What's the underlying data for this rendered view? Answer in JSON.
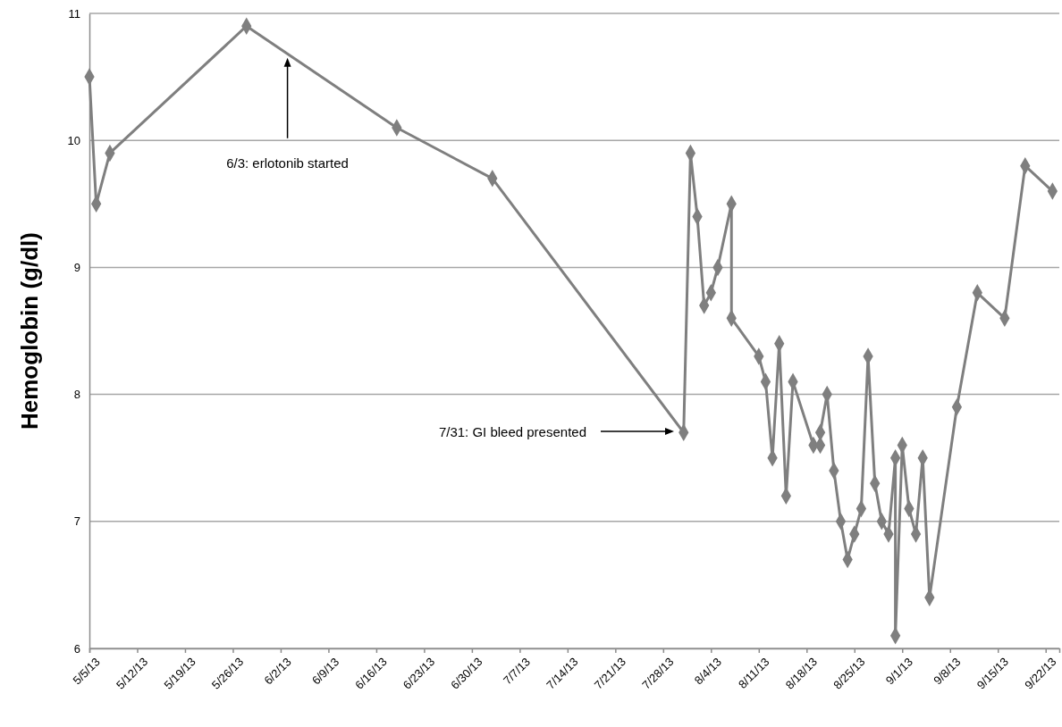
{
  "chart_data": {
    "type": "line",
    "ylabel": "Hemoglobin (g/dl)",
    "x": [
      "--05-05",
      "--05-06",
      "--05-08",
      "--05-28",
      "--06-19",
      "--07-03",
      "--07-31",
      "--08-01",
      "--08-02",
      "--08-03",
      "--08-04",
      "--08-05",
      "--08-07",
      "--08-07",
      "--08-11",
      "--08-12",
      "--08-13",
      "--08-14",
      "--08-15",
      "--08-16",
      "--08-19",
      "--08-20",
      "--08-20",
      "--08-21",
      "--08-22",
      "--08-23",
      "--08-24",
      "--08-25",
      "--08-26",
      "--08-27",
      "--08-28",
      "--08-29",
      "--08-30",
      "--08-31",
      "--08-31",
      "--09-01",
      "--09-02",
      "--09-03",
      "--09-04",
      "--09-05",
      "--09-09",
      "--09-12",
      "--09-16",
      "--09-19",
      "--09-23"
    ],
    "series": [
      {
        "color": "#7f7f7f",
        "values": [
          10.5,
          9.5,
          9.9,
          10.9,
          10.1,
          9.7,
          7.7,
          9.9,
          9.4,
          8.7,
          8.8,
          9.0,
          9.5,
          8.6,
          8.3,
          8.1,
          7.5,
          8.4,
          7.2,
          8.1,
          7.6,
          7.6,
          7.7,
          8.0,
          7.4,
          7.0,
          6.7,
          6.9,
          7.1,
          8.3,
          7.3,
          7.0,
          6.9,
          7.5,
          6.1,
          7.6,
          7.1,
          6.9,
          7.5,
          6.4,
          7.9,
          8.8,
          8.6,
          9.8,
          9.6
        ]
      }
    ],
    "xlim": [
      "--05-05",
      "--09-24"
    ],
    "xticks": [
      {
        "value": "--05-05",
        "label": "5/5/13"
      },
      {
        "value": "--05-12",
        "label": "5/12/13"
      },
      {
        "value": "--05-19",
        "label": "5/19/13"
      },
      {
        "value": "--05-26",
        "label": "5/26/13"
      },
      {
        "value": "--06-02",
        "label": "6/2/13"
      },
      {
        "value": "--06-09",
        "label": "6/9/13"
      },
      {
        "value": "--06-16",
        "label": "6/16/13"
      },
      {
        "value": "--06-23",
        "label": "6/23/13"
      },
      {
        "value": "--06-30",
        "label": "6/30/13"
      },
      {
        "value": "--07-07",
        "label": "7/7/13"
      },
      {
        "value": "--07-14",
        "label": "7/14/13"
      },
      {
        "value": "--07-21",
        "label": "7/21/13"
      },
      {
        "value": "--07-28",
        "label": "7/28/13"
      },
      {
        "value": "--08-04",
        "label": "8/4/13"
      },
      {
        "value": "--08-11",
        "label": "8/11/13"
      },
      {
        "value": "--08-18",
        "label": "8/18/13"
      },
      {
        "value": "--08-25",
        "label": "8/25/13"
      },
      {
        "value": "--09-01",
        "label": "9/1/13"
      },
      {
        "value": "--09-08",
        "label": "9/8/13"
      },
      {
        "value": "--09-15",
        "label": "9/15/13"
      },
      {
        "value": "--09-22",
        "label": "9/22/13"
      }
    ],
    "ylim": [
      6,
      11
    ],
    "yticks": [
      6,
      7,
      8,
      9,
      10,
      11
    ],
    "grid": "y",
    "marker": "diamond",
    "line_style": "solid",
    "annotations": [
      {
        "text": "6/3: erlotonib started",
        "x": "--06-03",
        "y": 10.65
      },
      "7/31: GI bleed presented"
    ]
  }
}
